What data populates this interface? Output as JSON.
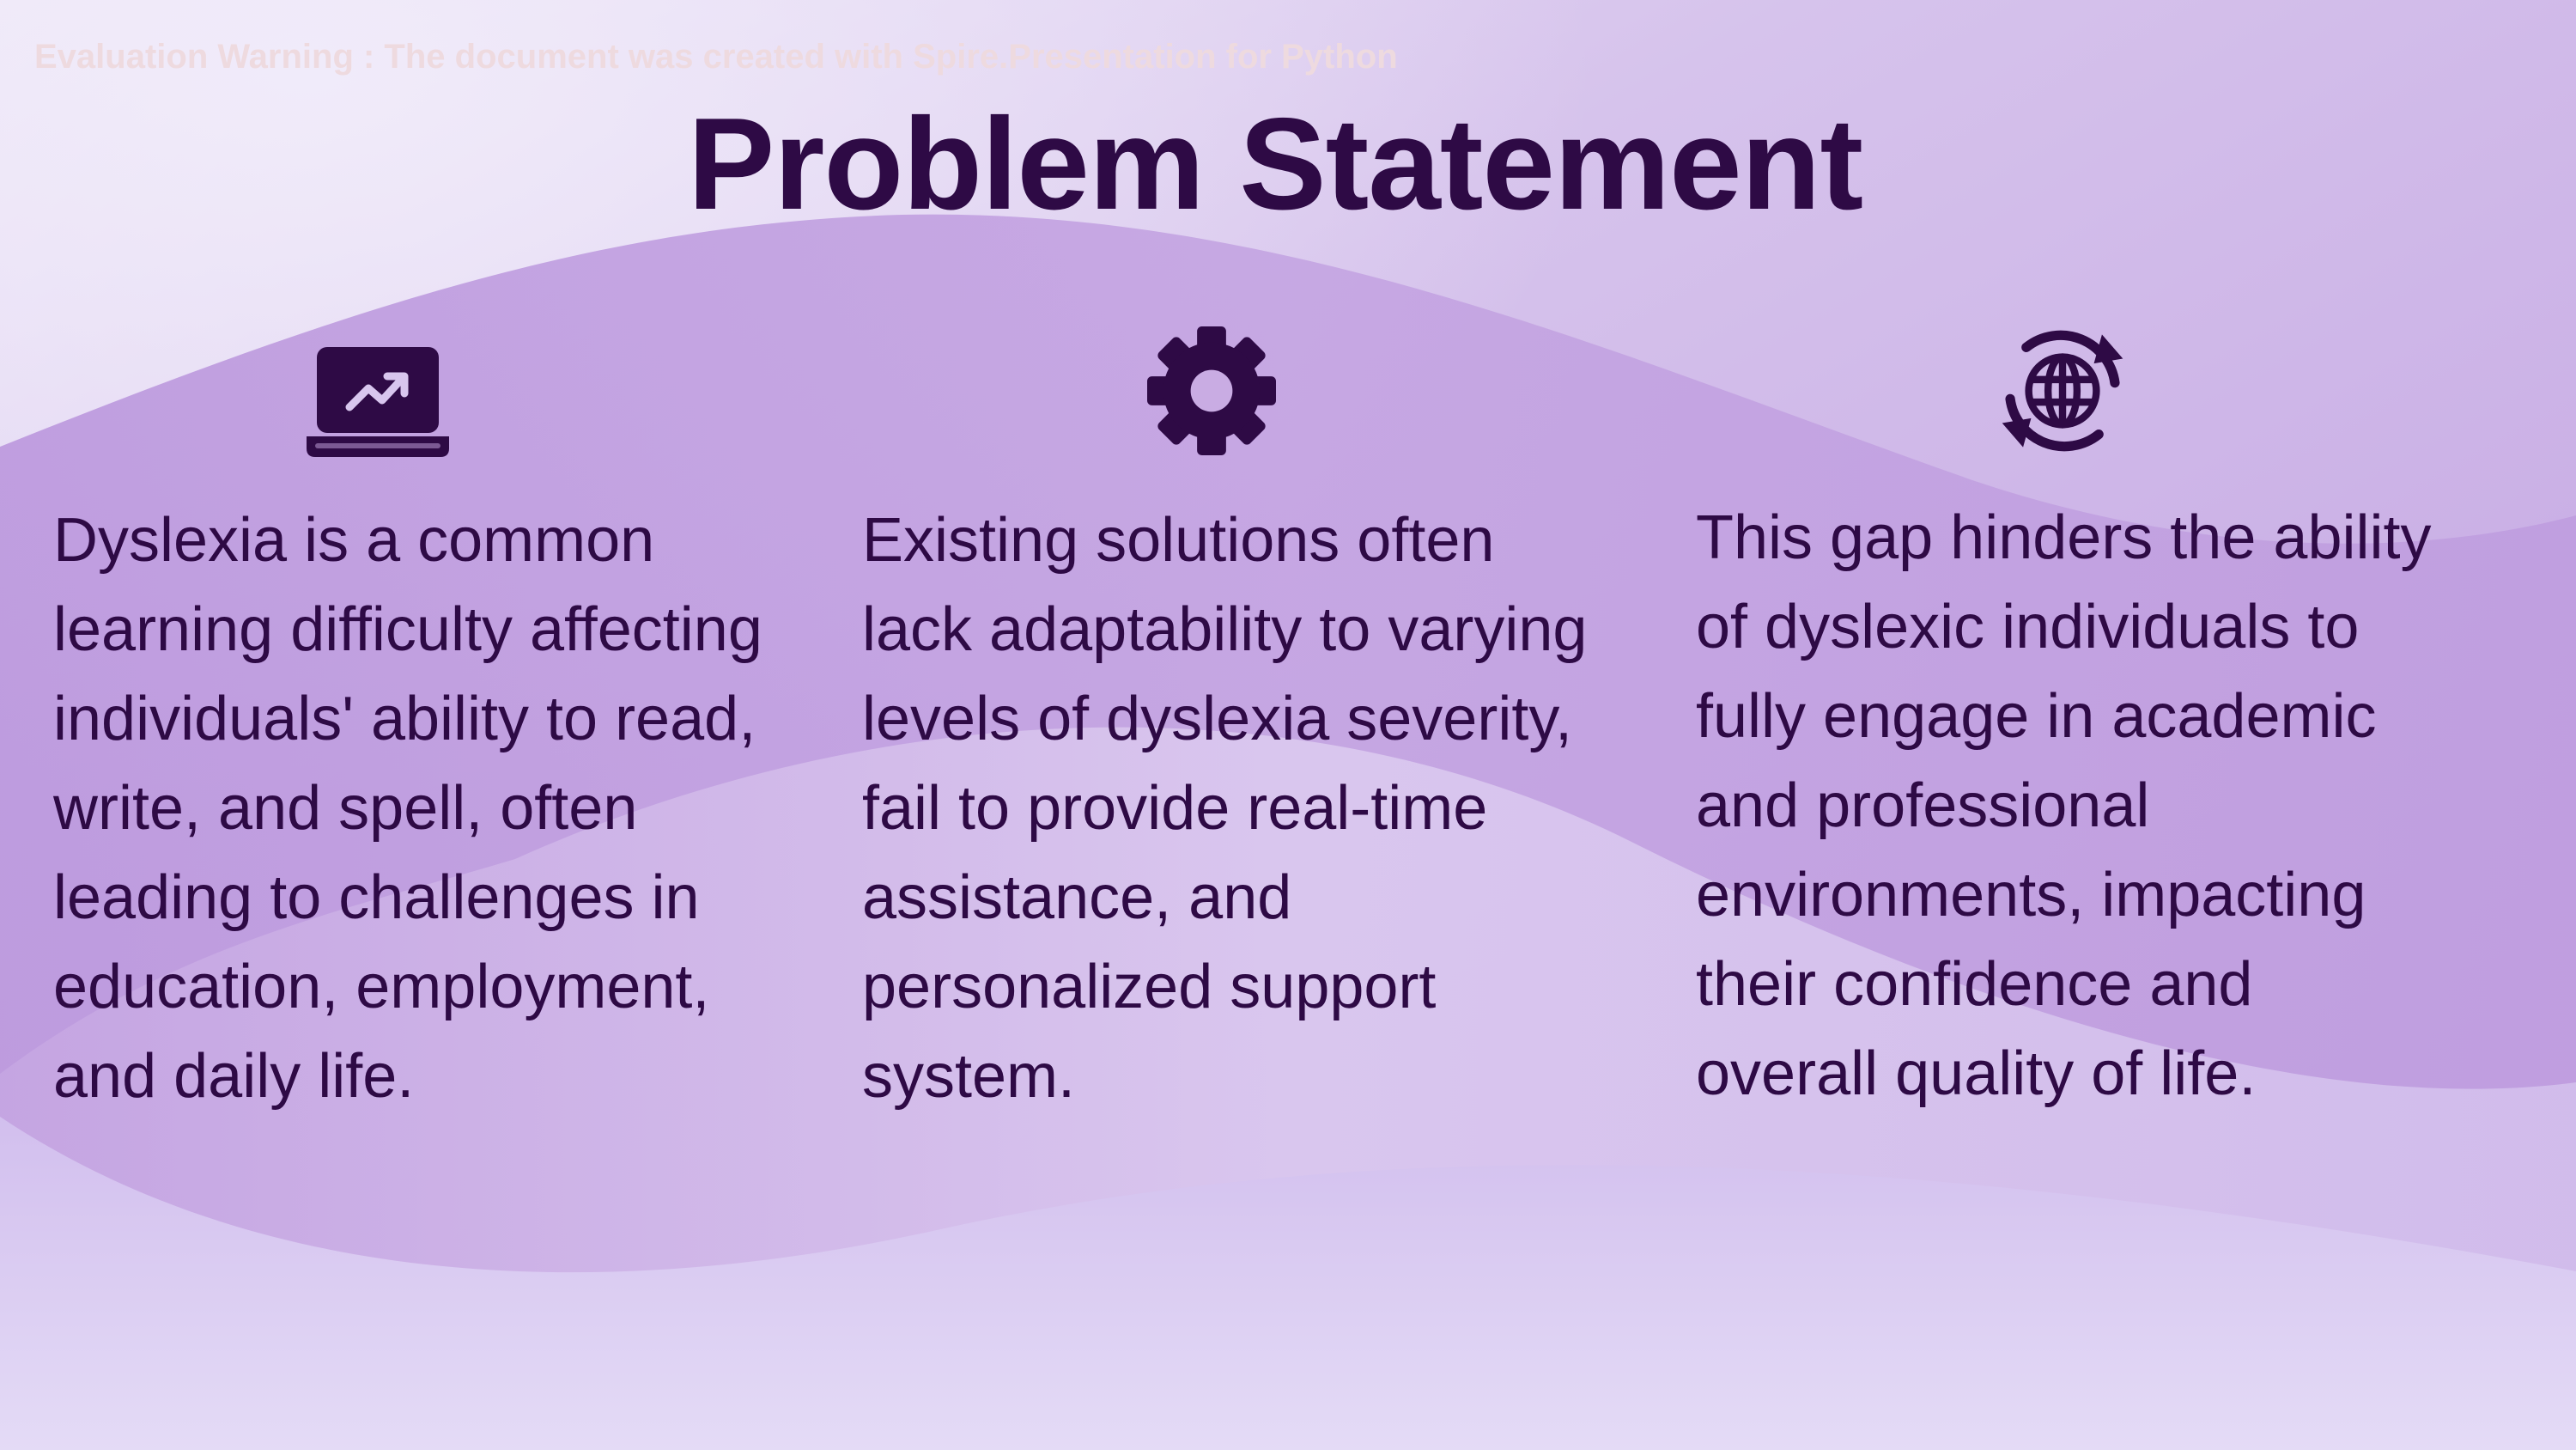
{
  "watermark": "Evaluation Warning : The document was created with Spire.Presentation for Python",
  "title": "Problem Statement",
  "columns": [
    {
      "icon": "laptop-trending-up-icon",
      "text": "Dyslexia is a common\nlearning difficulty affecting\nindividuals' ability to read,\nwrite, and spell, often\nleading to challenges in\neducation, employment,\nand daily life."
    },
    {
      "icon": "gear-icon",
      "text": "Existing solutions often\nlack adaptability to varying\nlevels of dyslexia severity,\nfail to provide real-time\nassistance, and\npersonalized support\nsystem."
    },
    {
      "icon": "globe-sync-icon",
      "text": "This gap hinders the ability\nof dyslexic individuals to\nfully engage in academic\nand professional\nenvironments, impacting\ntheir confidence and\noverall quality of life."
    }
  ],
  "colors": {
    "text": "#2e0a45",
    "background": "#c7a8e2",
    "watermark": "#eedadf"
  }
}
